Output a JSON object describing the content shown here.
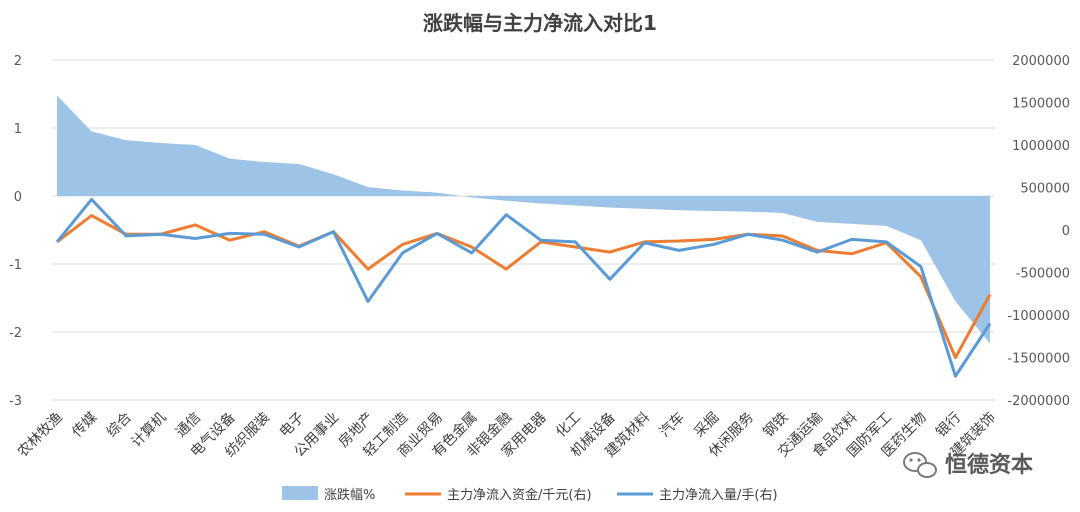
{
  "chart_data": {
    "type": "area+line",
    "title": "涨跌幅与主力净流入对比1",
    "categories": [
      "农林牧渔",
      "传媒",
      "综合",
      "计算机",
      "通信",
      "电气设备",
      "纺织服装",
      "电子",
      "公用事业",
      "房地产",
      "轻工制造",
      "商业贸易",
      "有色金属",
      "非银金融",
      "家用电器",
      "化工",
      "机械设备",
      "建筑材料",
      "汽车",
      "采掘",
      "休闲服务",
      "钢铁",
      "交通运输",
      "食品饮料",
      "国防军工",
      "医药生物",
      "银行",
      "建筑装饰"
    ],
    "left_axis": {
      "min": -3,
      "max": 2,
      "ticks": [
        2,
        1,
        0,
        -1,
        -2,
        -3
      ]
    },
    "right_axis": {
      "min": -2000000,
      "max": 2000000,
      "ticks": [
        2000000,
        1500000,
        1000000,
        500000,
        0,
        -500000,
        -1000000,
        -1500000,
        -2000000
      ]
    },
    "grid": true,
    "legend_position": "bottom",
    "series": [
      {
        "name": "涨跌幅%",
        "kind": "area",
        "axis": "left",
        "color": "#9dc3e6",
        "values": [
          1.48,
          0.95,
          0.82,
          0.78,
          0.75,
          0.55,
          0.5,
          0.47,
          0.32,
          0.13,
          0.08,
          0.05,
          -0.02,
          -0.07,
          -0.11,
          -0.14,
          -0.17,
          -0.19,
          -0.21,
          -0.22,
          -0.23,
          -0.25,
          -0.38,
          -0.41,
          -0.44,
          -0.65,
          -1.55,
          -2.17
        ]
      },
      {
        "name": "主力净流入资金/千元(右)",
        "kind": "line",
        "axis": "right",
        "color": "#ed7d31",
        "values": [
          -140000,
          170000,
          -50000,
          -50000,
          60000,
          -120000,
          -20000,
          -190000,
          -20000,
          -460000,
          -170000,
          -40000,
          -200000,
          -460000,
          -140000,
          -200000,
          -260000,
          -140000,
          -130000,
          -110000,
          -50000,
          -70000,
          -240000,
          -280000,
          -150000,
          -550000,
          -1500000,
          -760000
        ]
      },
      {
        "name": "主力净流入量/手(右)",
        "kind": "line",
        "axis": "right",
        "color": "#5b9bd5",
        "values": [
          -140000,
          360000,
          -70000,
          -50000,
          -100000,
          -40000,
          -50000,
          -200000,
          -20000,
          -840000,
          -270000,
          -40000,
          -270000,
          180000,
          -120000,
          -140000,
          -580000,
          -150000,
          -240000,
          -170000,
          -50000,
          -120000,
          -260000,
          -110000,
          -140000,
          -430000,
          -1720000,
          -1100000
        ]
      }
    ]
  },
  "watermark": {
    "icon": "wechat-icon",
    "text": "恒德资本"
  }
}
